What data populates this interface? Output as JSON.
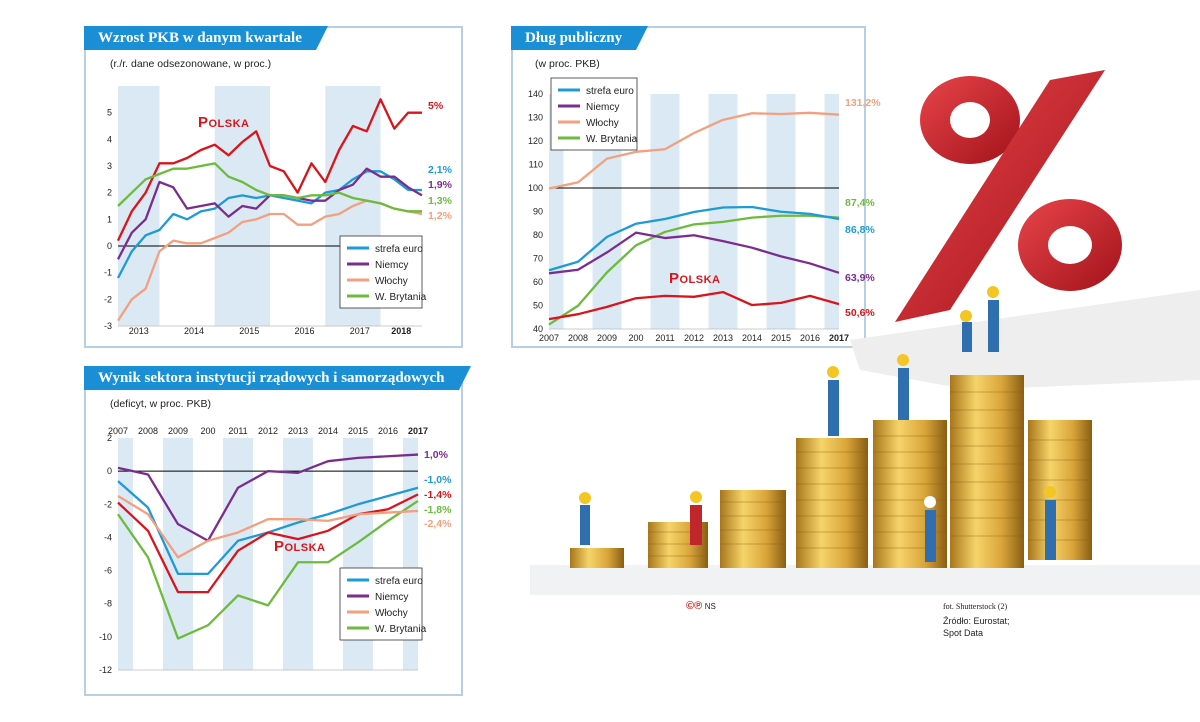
{
  "colors": {
    "strefa_euro": "#1e9ad6",
    "niemcy": "#7b2d8e",
    "wlochy": "#f2a07e",
    "wbrytania": "#6cbb3c",
    "polska": "#d9141b",
    "title_bar": "#1b8fd6",
    "band": "#dbe9f5"
  },
  "credits": {
    "cp": "©℗",
    "ns": "NS",
    "foto": "fot. Shutterstock (2)",
    "source1": "Źródło: Eurostat;",
    "source2": "Spot Data"
  },
  "chart_data": [
    {
      "id": "pkb",
      "type": "line",
      "title": "Wzrost PKB w danym kwartale",
      "subtitle": "(r./r. dane odsezonowane, w proc.)",
      "ylim": [
        -3,
        6
      ],
      "yticks": [
        -3,
        -2,
        -1,
        0,
        1,
        2,
        3,
        4,
        5
      ],
      "xlim": [
        0,
        22
      ],
      "xticks": [
        {
          "x": 1.5,
          "label": "2013"
        },
        {
          "x": 5.5,
          "label": "2014"
        },
        {
          "x": 9.5,
          "label": "2015"
        },
        {
          "x": 13.5,
          "label": "2016"
        },
        {
          "x": 17.5,
          "label": "2017"
        },
        {
          "x": 20.5,
          "label": "2018"
        }
      ],
      "polska_label": "Polska",
      "legend": [
        "strefa euro",
        "Niemcy",
        "Włochy",
        "W. Brytania"
      ],
      "series": [
        {
          "name": "Polska",
          "key": "polska",
          "end_label": "5%",
          "values": [
            0.2,
            1.3,
            2.0,
            3.1,
            3.1,
            3.3,
            3.6,
            3.8,
            3.4,
            3.9,
            4.3,
            3.0,
            2.8,
            2.0,
            3.1,
            2.4,
            3.6,
            4.5,
            4.3,
            5.5,
            4.4,
            5.0,
            5.0
          ]
        },
        {
          "name": "strefa euro",
          "key": "strefa_euro",
          "end_label": "2,1%",
          "values": [
            -1.2,
            -0.2,
            0.4,
            0.6,
            1.2,
            1.0,
            1.3,
            1.4,
            1.8,
            1.9,
            1.8,
            1.9,
            1.8,
            1.7,
            1.6,
            2.0,
            2.1,
            2.5,
            2.8,
            2.8,
            2.5,
            2.1,
            2.1
          ]
        },
        {
          "name": "Niemcy",
          "key": "niemcy",
          "end_label": "1,9%",
          "values": [
            -0.5,
            0.5,
            1.0,
            2.4,
            2.2,
            1.4,
            1.5,
            1.6,
            1.1,
            1.5,
            1.4,
            1.9,
            1.9,
            1.8,
            1.7,
            1.7,
            2.1,
            2.3,
            2.9,
            2.6,
            2.6,
            2.2,
            1.9
          ]
        },
        {
          "name": "Włochy",
          "key": "wlochy",
          "end_label": "1,2%",
          "values": [
            -2.8,
            -2.0,
            -1.6,
            -0.2,
            0.2,
            0.1,
            0.1,
            0.3,
            0.5,
            0.9,
            1.0,
            1.2,
            1.2,
            0.8,
            0.8,
            1.1,
            1.2,
            1.5,
            1.7,
            1.6,
            1.4,
            1.3,
            1.2
          ]
        },
        {
          "name": "W. Brytania",
          "key": "wbrytania",
          "end_label": "1,3%",
          "values": [
            1.5,
            2.0,
            2.5,
            2.7,
            2.9,
            2.9,
            3.0,
            3.1,
            2.6,
            2.4,
            2.1,
            1.9,
            1.9,
            1.8,
            1.9,
            1.9,
            2.0,
            1.8,
            1.7,
            1.6,
            1.4,
            1.3,
            1.3
          ]
        }
      ]
    },
    {
      "id": "dlug",
      "type": "line",
      "title": "Dług publiczny",
      "subtitle": "(w proc. PKB)",
      "ylim": [
        40,
        140
      ],
      "yticks": [
        40,
        50,
        60,
        70,
        80,
        90,
        100,
        110,
        120,
        130,
        140
      ],
      "x": [
        "2007",
        "2008",
        "2009",
        "200",
        "2011",
        "2012",
        "2013",
        "2014",
        "2015",
        "2016",
        "2017"
      ],
      "polska_label": "Polska",
      "legend": [
        "strefa euro",
        "Niemcy",
        "Włochy",
        "W. Brytania"
      ],
      "series": [
        {
          "name": "Włochy",
          "key": "wlochy",
          "end_label": "131,2%",
          "values": [
            99.8,
            102.4,
            112.5,
            115.4,
            116.5,
            123.4,
            129.0,
            131.8,
            131.5,
            132.0,
            131.2
          ]
        },
        {
          "name": "W. Brytania",
          "key": "wbrytania",
          "end_label": "87,4%",
          "values": [
            41.9,
            49.9,
            64.1,
            75.6,
            81.3,
            84.5,
            85.6,
            87.4,
            88.2,
            88.2,
            87.4
          ]
        },
        {
          "name": "strefa euro",
          "key": "strefa_euro",
          "end_label": "86,8%",
          "values": [
            65.0,
            68.6,
            79.2,
            84.8,
            86.8,
            89.8,
            91.7,
            91.9,
            89.9,
            89.0,
            86.8
          ]
        },
        {
          "name": "Niemcy",
          "key": "niemcy",
          "end_label": "63,9%",
          "values": [
            63.7,
            65.2,
            72.6,
            81.0,
            78.7,
            79.9,
            77.4,
            74.6,
            70.9,
            67.9,
            63.9
          ]
        },
        {
          "name": "Polska",
          "key": "polska",
          "end_label": "50,6%",
          "values": [
            44.2,
            46.3,
            49.4,
            53.1,
            54.1,
            53.7,
            55.7,
            50.2,
            51.1,
            54.1,
            50.6
          ]
        }
      ]
    },
    {
      "id": "deficyt",
      "type": "line",
      "title": "Wynik sektora instytucji rządowych i samorządowych",
      "subtitle": "(deficyt, w proc. PKB)",
      "ylim": [
        -12,
        2
      ],
      "yticks": [
        -12,
        -10,
        -8,
        -6,
        -4,
        -2,
        0,
        2
      ],
      "x": [
        "2007",
        "2008",
        "2009",
        "200",
        "2011",
        "2012",
        "2013",
        "2014",
        "2015",
        "2016",
        "2017"
      ],
      "polska_label": "Polska",
      "legend": [
        "strefa euro",
        "Niemcy",
        "Włochy",
        "W. Brytania"
      ],
      "series": [
        {
          "name": "Niemcy",
          "key": "niemcy",
          "end_label": "1,0%",
          "values": [
            0.2,
            -0.2,
            -3.2,
            -4.2,
            -1.0,
            0.0,
            -0.1,
            0.6,
            0.8,
            0.9,
            1.0
          ]
        },
        {
          "name": "strefa euro",
          "key": "strefa_euro",
          "end_label": "-1,0%",
          "values": [
            -0.6,
            -2.2,
            -6.2,
            -6.2,
            -4.2,
            -3.7,
            -3.1,
            -2.6,
            -2.0,
            -1.5,
            -1.0
          ]
        },
        {
          "name": "Polska",
          "key": "polska",
          "end_label": "-1,4%",
          "values": [
            -1.9,
            -3.6,
            -7.3,
            -7.3,
            -4.8,
            -3.7,
            -4.1,
            -3.6,
            -2.6,
            -2.3,
            -1.4
          ]
        },
        {
          "name": "W. Brytania",
          "key": "wbrytania",
          "end_label": "-1,8%",
          "values": [
            -2.6,
            -5.2,
            -10.1,
            -9.3,
            -7.5,
            -8.1,
            -5.5,
            -5.5,
            -4.3,
            -3.0,
            -1.8
          ]
        },
        {
          "name": "Włochy",
          "key": "wlochy",
          "end_label": "-2,4%",
          "values": [
            -1.5,
            -2.6,
            -5.2,
            -4.2,
            -3.7,
            -2.9,
            -2.9,
            -3.0,
            -2.6,
            -2.5,
            -2.4
          ]
        }
      ]
    }
  ]
}
